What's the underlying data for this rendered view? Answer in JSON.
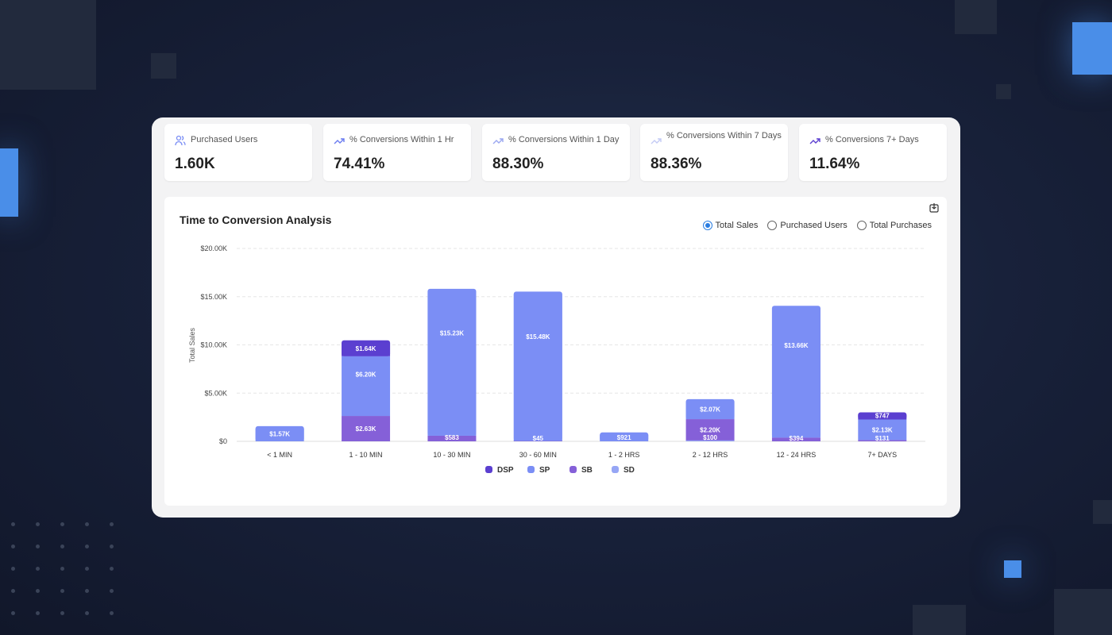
{
  "kpis": [
    {
      "label": "Purchased Users",
      "value": "1.60K",
      "icon": "users-icon",
      "icon_color": "#7b8ef5"
    },
    {
      "label": "% Conversions Within 1 Hr",
      "value": "74.41%",
      "icon": "trend-up-icon",
      "icon_color": "#6a7cf0"
    },
    {
      "label": "% Conversions Within 1 Day",
      "value": "88.30%",
      "icon": "trend-up-icon",
      "icon_color": "#9aa7f0"
    },
    {
      "label": "% Conversions Within 7 Days",
      "value": "88.36%",
      "icon": "trend-up-icon",
      "icon_color": "#c4cbf5"
    },
    {
      "label": "% Conversions 7+ Days",
      "value": "11.64%",
      "icon": "trend-up-icon",
      "icon_color": "#5b3fd0"
    }
  ],
  "panel": {
    "title": "Time to Conversion Analysis",
    "radios": [
      {
        "label": "Total Sales",
        "selected": true
      },
      {
        "label": "Purchased Users",
        "selected": false
      },
      {
        "label": "Total Purchases",
        "selected": false
      }
    ]
  },
  "chart_data": {
    "type": "bar",
    "stacked": true,
    "title": "Time to Conversion Analysis",
    "ylabel": "Total Sales",
    "xlabel": "",
    "ylim": [
      0,
      20000
    ],
    "yticks": [
      "$0",
      "$5.00K",
      "$10.00K",
      "$15.00K",
      "$20.00K"
    ],
    "grid": true,
    "legend": "bottom",
    "categories": [
      "< 1 MIN",
      "1 - 10 MIN",
      "10 - 30 MIN",
      "30 - 60 MIN",
      "1 - 2 HRS",
      "2 - 12 HRS",
      "12 - 24 HRS",
      "7+ DAYS"
    ],
    "series": [
      {
        "name": "SD",
        "color": "#96a6f5",
        "values": [
          0,
          0,
          0,
          0,
          0,
          100,
          0,
          0
        ],
        "labels": [
          "",
          "",
          "",
          "",
          "",
          "$100",
          "",
          ""
        ]
      },
      {
        "name": "SB",
        "color": "#8560d8",
        "values": [
          0,
          2630,
          583,
          45,
          0,
          2200,
          394,
          131
        ],
        "labels": [
          "",
          "$2.63K",
          "$583",
          "$45",
          "",
          "$2.20K",
          "$394",
          "$131"
        ]
      },
      {
        "name": "SP",
        "color": "#7b8ef5",
        "values": [
          1570,
          6200,
          15230,
          15480,
          921,
          2070,
          13660,
          2130
        ],
        "labels": [
          "$1.57K",
          "$6.20K",
          "$15.23K",
          "$15.48K",
          "$921",
          "$2.07K",
          "$13.66K",
          "$2.13K"
        ]
      },
      {
        "name": "DSP",
        "color": "#5b3fd0",
        "values": [
          0,
          1640,
          0,
          0,
          0,
          0,
          0,
          747
        ],
        "labels": [
          "",
          "$1.64K",
          "",
          "",
          "",
          "",
          "",
          "$747"
        ]
      }
    ],
    "legend_order": [
      "DSP",
      "SP",
      "SB",
      "SD"
    ]
  }
}
